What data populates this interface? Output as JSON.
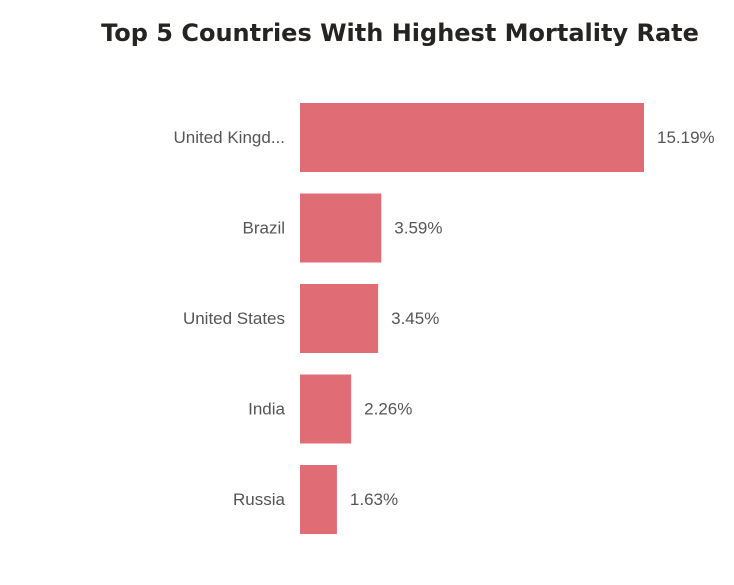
{
  "chart_data": {
    "type": "bar",
    "orientation": "horizontal",
    "title": "Top 5 Countries With Highest Mortality Rate",
    "categories": [
      "United Kingd...",
      "Brazil",
      "United States",
      "India",
      "Russia"
    ],
    "values": [
      15.19,
      3.59,
      3.45,
      2.26,
      1.63
    ],
    "data_labels": [
      "15.19%",
      "3.59%",
      "3.45%",
      "2.26%",
      "1.63%"
    ],
    "unit": "%",
    "xlim": [
      0,
      15.19
    ],
    "grid": false,
    "legend": "none",
    "bar_color": "#E06C75"
  }
}
